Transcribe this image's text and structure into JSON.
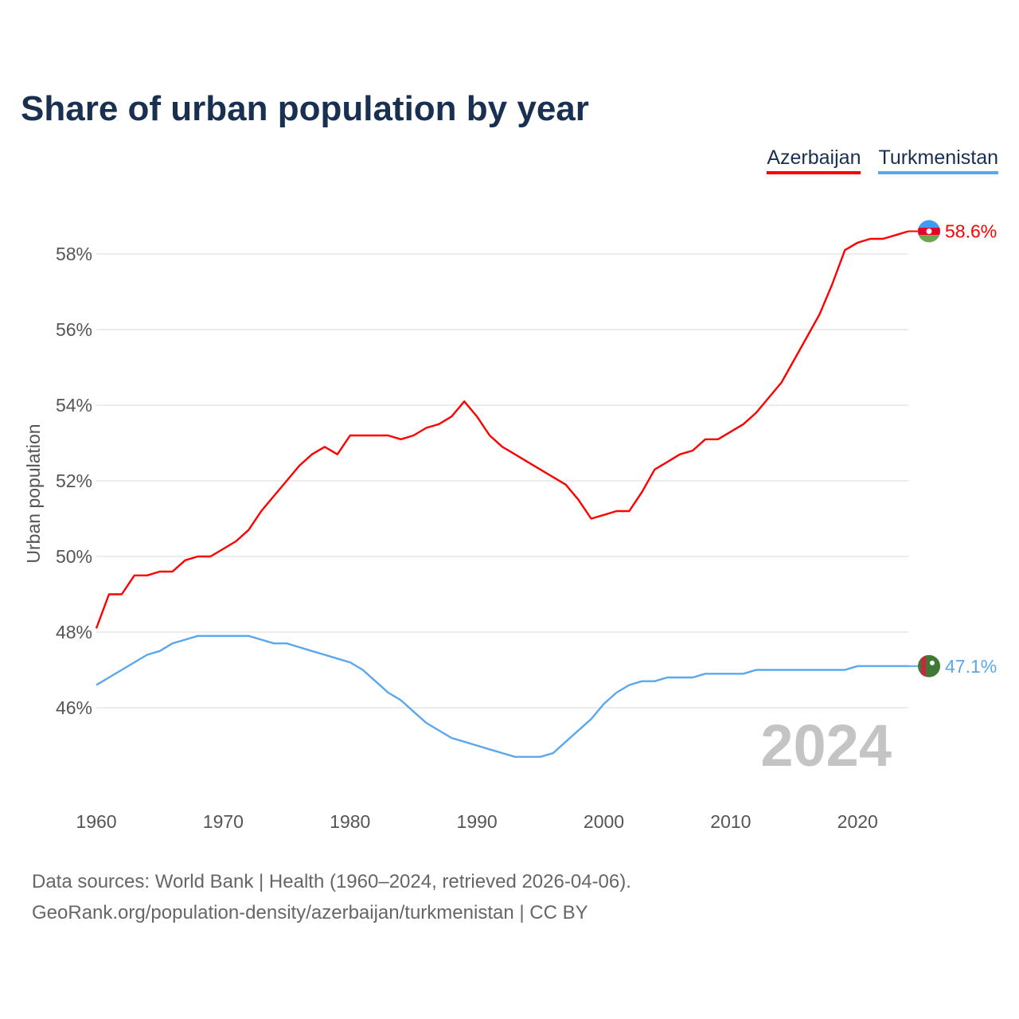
{
  "title": "Share of urban population by year",
  "legend": [
    "Azerbaijan",
    "Turkmenistan"
  ],
  "footer": {
    "line1": "Data sources: World Bank | Health (1960–2024, retrieved 2026-04-06).",
    "line2": "GeoRank.org/population-density/azerbaijan/turkmenistan | CC BY"
  },
  "year_watermark": "2024",
  "chart_data": {
    "type": "line",
    "title": "Share of urban population by year",
    "xlabel": "",
    "ylabel": "Urban population",
    "x_ticks": [
      "1960",
      "1970",
      "1980",
      "1990",
      "2000",
      "2010",
      "2020"
    ],
    "y_ticks": [
      "46%",
      "48%",
      "50%",
      "52%",
      "54%",
      "56%",
      "58%"
    ],
    "y_tick_values": [
      46,
      48,
      50,
      52,
      54,
      56,
      58
    ],
    "xlim": [
      1960,
      2024
    ],
    "ylim": [
      43.6,
      59.6
    ],
    "grid": true,
    "legend_position": "top-right",
    "x_start": 1960,
    "series": [
      {
        "name": "Azerbaijan",
        "color": "#ff0000",
        "end_label": "58.6%",
        "values": [
          48.1,
          49.0,
          49.0,
          49.5,
          49.5,
          49.6,
          49.6,
          49.9,
          50.0,
          50.0,
          50.2,
          50.4,
          50.7,
          51.2,
          51.6,
          52.0,
          52.4,
          52.7,
          52.9,
          52.7,
          53.2,
          53.2,
          53.2,
          53.2,
          53.1,
          53.2,
          53.4,
          53.5,
          53.7,
          54.1,
          53.7,
          53.2,
          52.9,
          52.7,
          52.5,
          52.3,
          52.1,
          51.9,
          51.5,
          51.0,
          51.1,
          51.2,
          51.2,
          51.7,
          52.3,
          52.5,
          52.7,
          52.8,
          53.1,
          53.1,
          53.3,
          53.5,
          53.8,
          54.2,
          54.6,
          55.2,
          55.8,
          56.4,
          57.2,
          58.1,
          58.3,
          58.4,
          58.4,
          58.5,
          58.6
        ]
      },
      {
        "name": "Turkmenistan",
        "color": "#5aa7f0",
        "end_label": "47.1%",
        "values": [
          46.6,
          46.8,
          47.0,
          47.2,
          47.4,
          47.5,
          47.7,
          47.8,
          47.9,
          47.9,
          47.9,
          47.9,
          47.9,
          47.8,
          47.7,
          47.7,
          47.6,
          47.5,
          47.4,
          47.3,
          47.2,
          47.0,
          46.7,
          46.4,
          46.2,
          45.9,
          45.6,
          45.4,
          45.2,
          45.1,
          45.0,
          44.9,
          44.8,
          44.7,
          44.7,
          44.7,
          44.8,
          45.1,
          45.4,
          45.7,
          46.1,
          46.4,
          46.6,
          46.7,
          46.7,
          46.8,
          46.8,
          46.8,
          46.9,
          46.9,
          46.9,
          46.9,
          47.0,
          47.0,
          47.0,
          47.0,
          47.0,
          47.0,
          47.0,
          47.0,
          47.1,
          47.1,
          47.1,
          47.1,
          47.1
        ]
      }
    ]
  }
}
